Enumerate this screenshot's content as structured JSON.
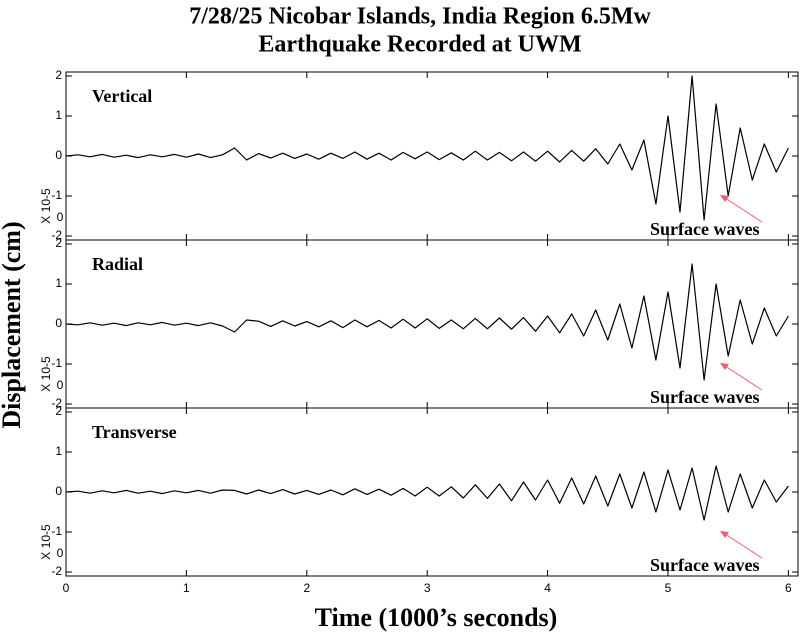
{
  "figure": {
    "title": [
      "7/28/25 Nicobar Islands, India Region 6.5Mw",
      "Earthquake Recorded at UWM"
    ],
    "x_label": "Time (1000’s seconds)",
    "y_label": "Displacement (cm)"
  },
  "chart_data": [
    {
      "type": "line",
      "label": "Vertical",
      "annotation": "Surface waves",
      "scale_label": "X 10-5",
      "scale_offset": "0",
      "color": "#000000",
      "arrow_color": "#e06070",
      "xlim": [
        0,
        6.08
      ],
      "xticks": [
        0,
        1,
        2,
        3,
        4,
        5,
        6
      ],
      "ylim": [
        -2.1,
        2.1
      ],
      "yticks": [
        -2,
        -1,
        0,
        1,
        2
      ],
      "x": [
        0,
        0.1,
        0.2,
        0.3,
        0.4,
        0.5,
        0.6,
        0.7,
        0.8,
        0.9,
        1,
        1.1,
        1.2,
        1.3,
        1.4,
        1.5,
        1.6,
        1.7,
        1.8,
        1.9,
        2,
        2.1,
        2.2,
        2.3,
        2.4,
        2.5,
        2.6,
        2.7,
        2.8,
        2.9,
        3,
        3.1,
        3.2,
        3.3,
        3.4,
        3.5,
        3.6,
        3.7,
        3.8,
        3.9,
        4,
        4.1,
        4.2,
        4.3,
        4.4,
        4.5,
        4.6,
        4.7,
        4.8,
        4.9,
        5,
        5.1,
        5.2,
        5.3,
        5.4,
        5.5,
        5.6,
        5.7,
        5.8,
        5.9,
        6
      ],
      "values": [
        0,
        0.03,
        -0.02,
        0.04,
        -0.03,
        0.02,
        -0.04,
        0.03,
        -0.02,
        0.04,
        -0.03,
        0.05,
        -0.04,
        0.03,
        0.2,
        -0.1,
        0.06,
        -0.05,
        0.07,
        -0.06,
        0.05,
        -0.08,
        0.07,
        -0.06,
        0.1,
        -0.08,
        0.07,
        -0.1,
        0.09,
        -0.07,
        0.1,
        -0.09,
        0.08,
        -0.1,
        0.12,
        -0.1,
        0.09,
        -0.12,
        0.1,
        -0.13,
        0.12,
        -0.15,
        0.14,
        -0.13,
        0.18,
        -0.2,
        0.3,
        -0.35,
        0.4,
        -1.2,
        1.0,
        -1.4,
        2.0,
        -1.6,
        1.3,
        -1.0,
        0.7,
        -0.6,
        0.3,
        -0.4,
        0.2
      ]
    },
    {
      "type": "line",
      "label": "Radial",
      "annotation": "Surface waves",
      "scale_label": "X 10-5",
      "scale_offset": "0",
      "color": "#000000",
      "arrow_color": "#e06070",
      "xlim": [
        0,
        6.08
      ],
      "xticks": [
        0,
        1,
        2,
        3,
        4,
        5,
        6
      ],
      "ylim": [
        -2.1,
        2.1
      ],
      "yticks": [
        -2,
        -1,
        0,
        1,
        2
      ],
      "x": [
        0,
        0.1,
        0.2,
        0.3,
        0.4,
        0.5,
        0.6,
        0.7,
        0.8,
        0.9,
        1,
        1.1,
        1.2,
        1.3,
        1.4,
        1.5,
        1.6,
        1.7,
        1.8,
        1.9,
        2,
        2.1,
        2.2,
        2.3,
        2.4,
        2.5,
        2.6,
        2.7,
        2.8,
        2.9,
        3,
        3.1,
        3.2,
        3.3,
        3.4,
        3.5,
        3.6,
        3.7,
        3.8,
        3.9,
        4,
        4.1,
        4.2,
        4.3,
        4.4,
        4.5,
        4.6,
        4.7,
        4.8,
        4.9,
        5,
        5.1,
        5.2,
        5.3,
        5.4,
        5.5,
        5.6,
        5.7,
        5.8,
        5.9,
        6
      ],
      "values": [
        0,
        -0.02,
        0.03,
        -0.03,
        0.02,
        -0.04,
        0.03,
        -0.02,
        0.04,
        -0.03,
        0.02,
        -0.04,
        0.03,
        -0.05,
        -0.2,
        0.1,
        0.07,
        -0.06,
        0.08,
        -0.05,
        0.06,
        -0.07,
        0.08,
        -0.09,
        0.1,
        -0.07,
        0.09,
        -0.1,
        0.12,
        -0.1,
        0.13,
        -0.11,
        0.1,
        -0.12,
        0.14,
        -0.12,
        0.15,
        -0.13,
        0.16,
        -0.18,
        0.2,
        -0.22,
        0.25,
        -0.3,
        0.35,
        -0.4,
        0.5,
        -0.6,
        0.7,
        -0.9,
        0.8,
        -1.1,
        1.5,
        -1.4,
        1.0,
        -0.8,
        0.6,
        -0.5,
        0.4,
        -0.3,
        0.2
      ]
    },
    {
      "type": "line",
      "label": "Transverse",
      "annotation": "Surface waves",
      "scale_label": "X 10-5",
      "scale_offset": "0",
      "color": "#000000",
      "arrow_color": "#e06070",
      "xlim": [
        0,
        6.08
      ],
      "xticks": [
        0,
        1,
        2,
        3,
        4,
        5,
        6
      ],
      "ylim": [
        -2.1,
        2.1
      ],
      "yticks": [
        -2,
        -1,
        0,
        1,
        2
      ],
      "x": [
        0,
        0.1,
        0.2,
        0.3,
        0.4,
        0.5,
        0.6,
        0.7,
        0.8,
        0.9,
        1,
        1.1,
        1.2,
        1.3,
        1.4,
        1.5,
        1.6,
        1.7,
        1.8,
        1.9,
        2,
        2.1,
        2.2,
        2.3,
        2.4,
        2.5,
        2.6,
        2.7,
        2.8,
        2.9,
        3,
        3.1,
        3.2,
        3.3,
        3.4,
        3.5,
        3.6,
        3.7,
        3.8,
        3.9,
        4,
        4.1,
        4.2,
        4.3,
        4.4,
        4.5,
        4.6,
        4.7,
        4.8,
        4.9,
        5,
        5.1,
        5.2,
        5.3,
        5.4,
        5.5,
        5.6,
        5.7,
        5.8,
        5.9,
        6
      ],
      "values": [
        0,
        0.02,
        -0.03,
        0.03,
        -0.02,
        0.04,
        -0.03,
        0.02,
        -0.04,
        0.03,
        -0.02,
        0.04,
        -0.03,
        0.05,
        0.04,
        -0.05,
        0.05,
        -0.04,
        0.06,
        -0.05,
        0.04,
        -0.06,
        0.05,
        -0.07,
        0.08,
        -0.06,
        0.07,
        -0.08,
        0.09,
        -0.1,
        0.12,
        -0.1,
        0.13,
        -0.15,
        0.18,
        -0.16,
        0.2,
        -0.22,
        0.25,
        -0.2,
        0.3,
        -0.28,
        0.35,
        -0.3,
        0.4,
        -0.35,
        0.45,
        -0.4,
        0.5,
        -0.5,
        0.55,
        -0.45,
        0.6,
        -0.7,
        0.65,
        -0.5,
        0.45,
        -0.4,
        0.3,
        -0.25,
        0.15
      ]
    }
  ]
}
